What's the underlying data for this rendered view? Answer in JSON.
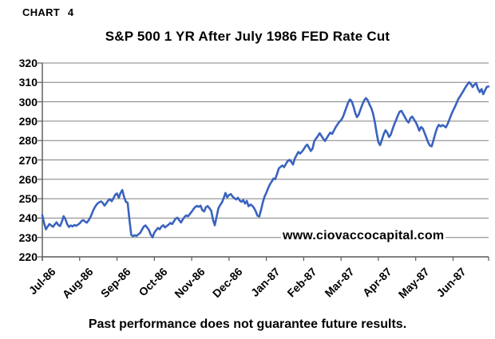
{
  "page": {
    "chart_label": "CHART 4",
    "watermark": "www.ciovaccocapital.com",
    "footer": "Past performance does not guarantee future results."
  },
  "colors": {
    "line": "#3A63BE",
    "gridline": "#808080",
    "axis": "#595959",
    "text": "#000000",
    "background": "#FFFFFF"
  },
  "chart_data": {
    "type": "line",
    "title": "S&P 500 1 YR After July 1986 FED Rate Cut",
    "series_name": "S&P 500",
    "xlabel": "",
    "ylabel": "",
    "ylim": [
      220,
      320
    ],
    "y_ticks": [
      220,
      230,
      240,
      250,
      260,
      270,
      280,
      290,
      300,
      310,
      320
    ],
    "x_tick_labels": [
      "Jul-86",
      "Aug-86",
      "Sep-86",
      "Oct-86",
      "Nov-86",
      "Dec-86",
      "Jan-87",
      "Feb-87",
      "Mar-87",
      "Apr-87",
      "May-87",
      "Jun-87"
    ],
    "grid": "horizontal",
    "legend": "none",
    "points_per_month": 21,
    "values": [
      241.5,
      237.4,
      234.2,
      235.6,
      236.9,
      236.2,
      235.5,
      236.7,
      237.8,
      236.4,
      235.9,
      238.1,
      241.0,
      239.4,
      236.8,
      235.4,
      236.2,
      235.7,
      236.4,
      236.0,
      236.6,
      237.3,
      238.4,
      239.0,
      238.2,
      237.6,
      238.8,
      240.3,
      242.6,
      244.7,
      246.3,
      247.5,
      248.2,
      248.6,
      247.8,
      246.4,
      247.7,
      249.0,
      249.8,
      248.7,
      250.2,
      252.0,
      252.7,
      250.5,
      253.0,
      254.5,
      250.9,
      248.4,
      247.9,
      239.2,
      231.3,
      230.6,
      231.2,
      230.8,
      231.6,
      232.3,
      233.9,
      235.5,
      236.2,
      235.1,
      233.8,
      231.4,
      230.1,
      232.5,
      233.7,
      234.9,
      234.2,
      235.6,
      236.3,
      235.2,
      235.9,
      236.6,
      237.5,
      236.9,
      238.3,
      239.7,
      240.2,
      238.9,
      237.7,
      239.3,
      240.6,
      241.4,
      240.9,
      242.1,
      243.3,
      244.6,
      245.7,
      246.3,
      245.8,
      246.4,
      244.1,
      243.4,
      245.6,
      246.2,
      245.1,
      243.8,
      239.1,
      236.3,
      240.6,
      245.0,
      246.7,
      248.0,
      250.3,
      253.0,
      250.7,
      251.9,
      252.4,
      251.1,
      250.3,
      249.6,
      250.5,
      249.1,
      248.4,
      249.3,
      247.5,
      248.9,
      246.1,
      247.0,
      246.4,
      245.3,
      243.5,
      241.2,
      240.8,
      244.1,
      248.1,
      251.2,
      253.0,
      255.4,
      257.4,
      258.8,
      260.4,
      260.1,
      262.7,
      265.6,
      266.4,
      267.1,
      266.3,
      267.9,
      269.4,
      270.1,
      269.1,
      267.6,
      270.6,
      272.5,
      274.1,
      273.3,
      274.3,
      275.5,
      277.0,
      277.9,
      276.3,
      274.6,
      275.9,
      279.8,
      281.1,
      282.4,
      283.8,
      282.3,
      280.9,
      279.8,
      281.3,
      282.9,
      284.1,
      283.4,
      285.1,
      286.9,
      288.3,
      289.6,
      290.5,
      292.0,
      294.5,
      297.0,
      299.6,
      301.2,
      300.3,
      297.6,
      294.2,
      292.1,
      293.5,
      296.1,
      298.6,
      300.7,
      301.9,
      300.8,
      298.6,
      296.8,
      294.0,
      289.5,
      284.0,
      279.2,
      277.6,
      280.4,
      283.3,
      285.3,
      284.0,
      281.8,
      283.1,
      285.9,
      288.5,
      290.7,
      293.0,
      294.9,
      295.3,
      293.6,
      292.0,
      290.2,
      289.3,
      291.5,
      292.4,
      290.9,
      289.5,
      287.6,
      285.1,
      287.0,
      286.2,
      283.9,
      281.5,
      279.0,
      277.4,
      277.0,
      280.3,
      283.6,
      286.4,
      288.1,
      287.3,
      288.0,
      287.5,
      286.8,
      288.7,
      291.0,
      293.3,
      295.5,
      297.3,
      299.4,
      301.5,
      302.9,
      304.4,
      305.9,
      307.5,
      308.9,
      310.1,
      309.2,
      307.6,
      308.9,
      309.6,
      306.8,
      305.0,
      306.6,
      303.9,
      305.9,
      307.7,
      307.9
    ]
  }
}
